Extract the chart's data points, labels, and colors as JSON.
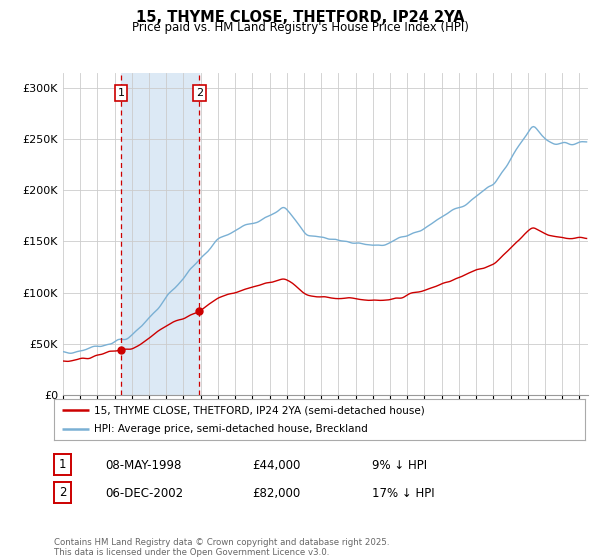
{
  "title": "15, THYME CLOSE, THETFORD, IP24 2YA",
  "subtitle": "Price paid vs. HM Land Registry's House Price Index (HPI)",
  "sale1_date": "08-MAY-1998",
  "sale1_price": 44000,
  "sale1_pct": "9% ↓ HPI",
  "sale1_year": 1998.36,
  "sale2_date": "06-DEC-2002",
  "sale2_price": 82000,
  "sale2_pct": "17% ↓ HPI",
  "sale2_year": 2002.92,
  "legend_line1": "15, THYME CLOSE, THETFORD, IP24 2YA (semi-detached house)",
  "legend_line2": "HPI: Average price, semi-detached house, Breckland",
  "footer": "Contains HM Land Registry data © Crown copyright and database right 2025.\nThis data is licensed under the Open Government Licence v3.0.",
  "price_color": "#cc0000",
  "hpi_color": "#7ab0d4",
  "shade_color": "#dce9f5",
  "vline_color": "#cc0000",
  "bg_color": "#ffffff",
  "grid_color": "#cccccc",
  "yticks": [
    0,
    50000,
    100000,
    150000,
    200000,
    250000,
    300000
  ],
  "ylim": [
    0,
    315000
  ],
  "xlim_start": 1995.0,
  "xlim_end": 2025.5
}
